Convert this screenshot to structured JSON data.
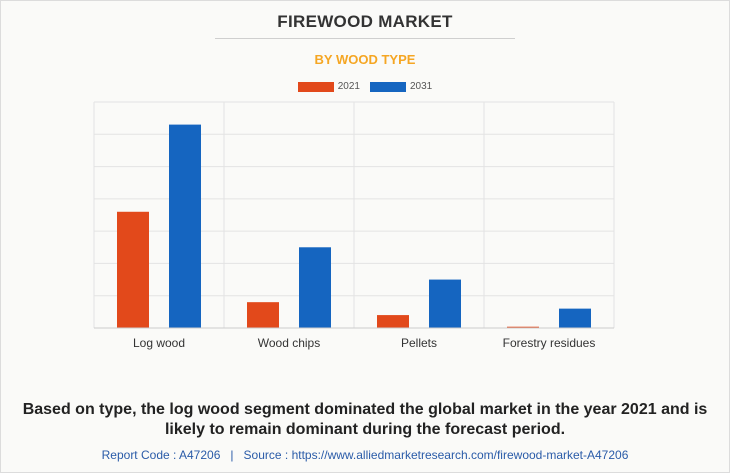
{
  "chart_data": {
    "type": "bar",
    "title": "FIREWOOD MARKET",
    "subtitle": "BY WOOD TYPE",
    "categories": [
      "Log wood",
      "Wood chips",
      "Pellets",
      "Forestry residues"
    ],
    "series": [
      {
        "name": "2021",
        "color": "#e2491b",
        "values": [
          36,
          8,
          4,
          0.4
        ]
      },
      {
        "name": "2031",
        "color": "#1565c0",
        "values": [
          63,
          25,
          15,
          6
        ]
      }
    ],
    "ylim": [
      0,
      70
    ],
    "grid": true,
    "legend": "top-center"
  },
  "caption": "Based on type, the log wood segment dominated the global market in the year 2021 and is likely to remain dominant during the forecast period.",
  "footer": {
    "report_code": "Report Code : A47206",
    "separator": "|",
    "source": "Source : https://www.alliedmarketresearch.com/firewood-market-A47206"
  }
}
